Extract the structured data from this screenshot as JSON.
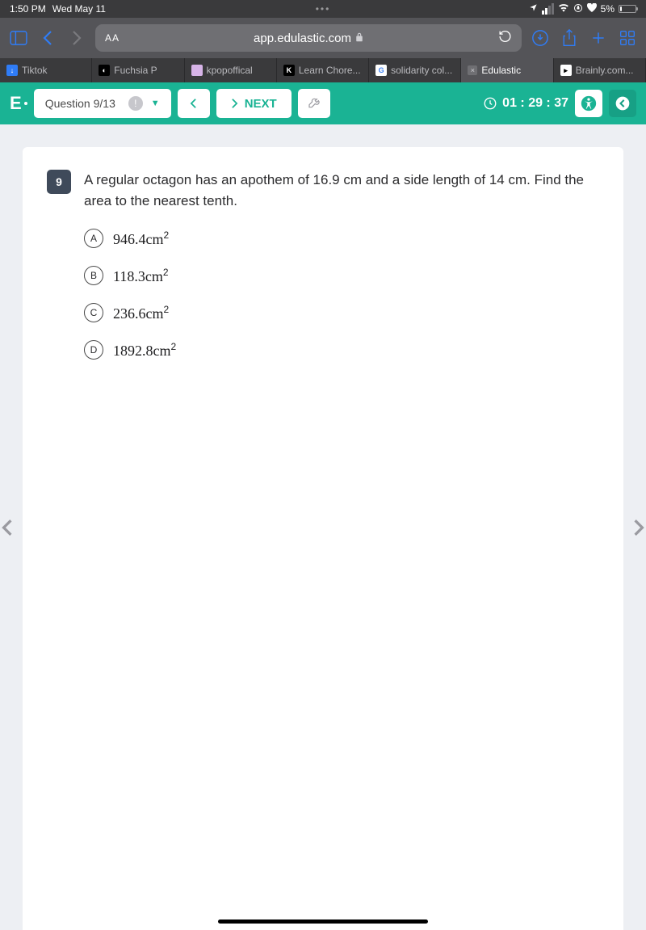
{
  "status": {
    "time": "1:50 PM",
    "date": "Wed May 11",
    "battery": "5%"
  },
  "browser": {
    "url": "app.edulastic.com",
    "aa": "AA",
    "tabs": [
      {
        "label": "Tiktok",
        "ico_bg": "#2f7cf6",
        "ico_txt": "↓",
        "ico_color": "#ffffff"
      },
      {
        "label": "Fuchsia P",
        "ico_bg": "#000000",
        "ico_txt": "◐",
        "ico_color": "#ffffff"
      },
      {
        "label": "kpopoffical",
        "ico_bg": "#d7b4e8",
        "ico_txt": "",
        "ico_color": "#ffffff"
      },
      {
        "label": "Learn Chore...",
        "ico_bg": "#000000",
        "ico_txt": "K",
        "ico_color": "#ffffff"
      },
      {
        "label": "solidarity col...",
        "ico_bg": "#ffffff",
        "ico_txt": "G",
        "ico_color": "#4285f4"
      },
      {
        "label": "Edulastic",
        "ico_bg": "#6f6f73",
        "ico_txt": "×",
        "ico_color": "#d0d0d4",
        "active": true
      },
      {
        "label": "Brainly.com...",
        "ico_bg": "#ffffff",
        "ico_txt": "▸",
        "ico_color": "#000000"
      }
    ]
  },
  "header": {
    "logo": "E",
    "question_label": "Question 9/13",
    "next_label": "NEXT",
    "timer": "01 : 29 : 37"
  },
  "question": {
    "number": "9",
    "text": "A regular octagon has an apothem of 16.9 cm and a side length of 14 cm.  Find the area to the nearest tenth.",
    "choices": [
      {
        "letter": "A",
        "value": "946.4cm",
        "sup": "2"
      },
      {
        "letter": "B",
        "value": "118.3cm",
        "sup": "2"
      },
      {
        "letter": "C",
        "value": "236.6cm",
        "sup": "2"
      },
      {
        "letter": "D",
        "value": "1892.8cm",
        "sup": "2"
      }
    ]
  },
  "colors": {
    "accent": "#1ab394",
    "page_bg": "#edeff3",
    "sheet_bg": "#ffffff",
    "qnum_bg": "#3f4a5a"
  }
}
